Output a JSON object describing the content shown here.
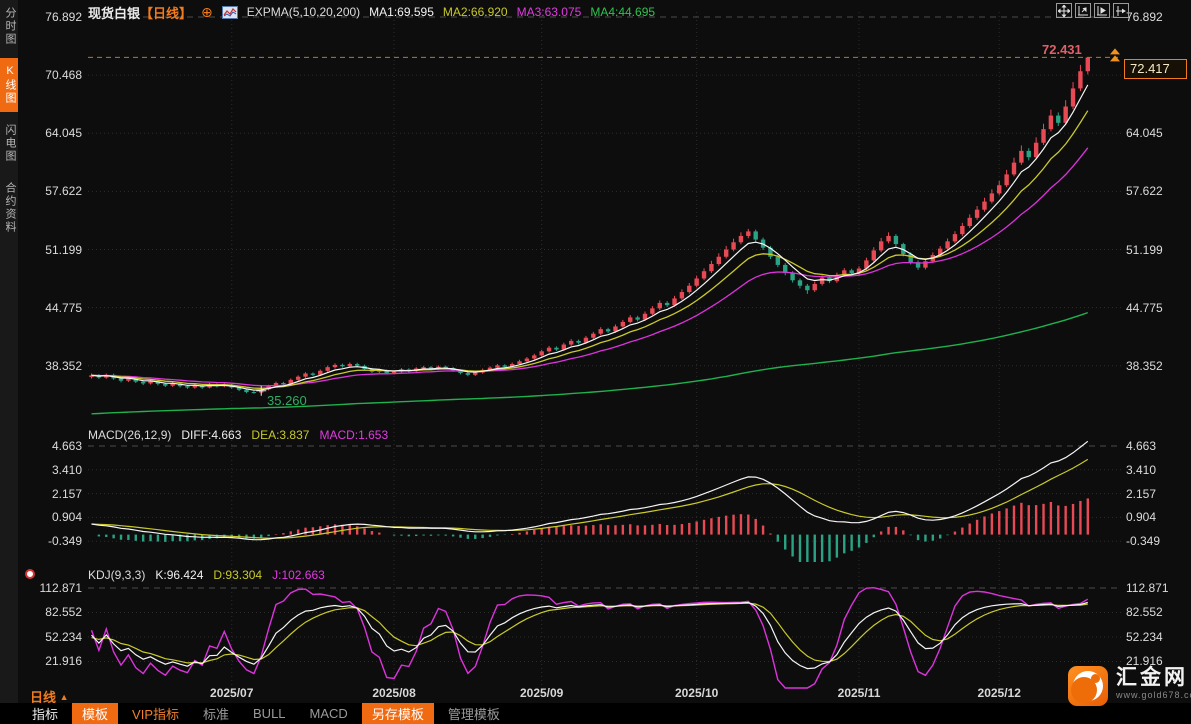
{
  "sidebar": {
    "tabs": [
      {
        "label": "分时图",
        "active": false
      },
      {
        "label": "K线图",
        "active": true
      },
      {
        "label": "闪电图",
        "active": false
      },
      {
        "label": "合约资料",
        "active": false
      }
    ]
  },
  "header": {
    "symbol": "现货白银",
    "period": "【日线】",
    "add_icon": "⊕",
    "indicator_label": "EXPMA(5,10,20,200)",
    "ma1": "MA1:69.595",
    "ma2": "MA2:66.920",
    "ma3": "MA3:63.075",
    "ma4": "MA4:44.695"
  },
  "toolbar_icons": [
    "pan-mode-icon",
    "compress-time-icon",
    "play-forward-icon",
    "jump-latest-icon"
  ],
  "main_chart": {
    "annotations": {
      "high": "72.431",
      "low": "35.260",
      "last_price": "72.417"
    }
  },
  "macd_panel": {
    "title": "MACD(26,12,9)",
    "diff": "DIFF:4.663",
    "dea": "DEA:3.837",
    "macd": "MACD:1.653"
  },
  "kdj_panel": {
    "title": "KDJ(9,3,3)",
    "k": "K:96.424",
    "d": "D:93.304",
    "j": "J:102.663"
  },
  "period_label": {
    "text": "日线",
    "arrow": "▲"
  },
  "bottom_toolbar": {
    "items": [
      {
        "label": "指标",
        "style": "bright"
      },
      {
        "label": "模板",
        "style": "active"
      },
      {
        "label": "VIP指标",
        "style": "vip"
      },
      {
        "label": "标准",
        "style": "plain"
      },
      {
        "label": "BULL",
        "style": "plain"
      },
      {
        "label": "MACD",
        "style": "plain"
      },
      {
        "label": "另存模板",
        "style": "active"
      },
      {
        "label": "管理模板",
        "style": "plain"
      }
    ]
  },
  "logo": {
    "name": "汇金网",
    "url": "www.gold678.com"
  },
  "colors": {
    "up_candle": "#e84a55",
    "down_candle": "#2aa385",
    "ma1": "#f5f5f5",
    "ma2": "#c9c92b",
    "ma3": "#dd33dd",
    "ma4": "#1fb14e",
    "accent_orange": "#f06a12",
    "high_line": "#c8731c",
    "grid": "#2c2c2c",
    "grid_dashed": "#4a4a4a",
    "axis_text": "#dcdcdc",
    "high_label": "#e06069",
    "low_label": "#2fae63"
  },
  "chart_data": {
    "type": "candlestick",
    "title": "现货白银 日线 (Spot Silver, daily)",
    "y_axis_main": [
      76.892,
      70.468,
      64.045,
      57.622,
      51.199,
      44.775,
      38.352
    ],
    "y_axis_macd": [
      4.663,
      3.41,
      2.157,
      0.904,
      -0.349
    ],
    "y_axis_kdj": [
      112.871,
      82.552,
      52.234,
      21.916
    ],
    "x_month_ticks": [
      {
        "label": "2025/07",
        "index": 19
      },
      {
        "label": "2025/08",
        "index": 41
      },
      {
        "label": "2025/09",
        "index": 61
      },
      {
        "label": "2025/10",
        "index": 82
      },
      {
        "label": "2025/11",
        "index": 104
      },
      {
        "label": "2025/12",
        "index": 123
      }
    ],
    "high_line_value": 72.431,
    "last_price": 72.417,
    "marked_low": {
      "index": 22,
      "value": 35.26
    },
    "indicators": {
      "expma_periods": [
        5,
        10,
        20,
        200
      ],
      "macd_params": [
        26,
        12,
        9
      ],
      "kdj_params": [
        9,
        3,
        3
      ]
    },
    "candles": [
      [
        37.1,
        37.5,
        36.95,
        37.3
      ],
      [
        37.3,
        37.45,
        36.9,
        37.05
      ],
      [
        37.05,
        37.5,
        36.92,
        37.35
      ],
      [
        37.35,
        37.48,
        36.8,
        36.95
      ],
      [
        36.95,
        37.08,
        36.52,
        36.7
      ],
      [
        36.7,
        37.12,
        36.55,
        36.95
      ],
      [
        36.95,
        37.05,
        36.45,
        36.6
      ],
      [
        36.6,
        36.75,
        36.22,
        36.4
      ],
      [
        36.4,
        36.82,
        36.28,
        36.65
      ],
      [
        36.65,
        36.78,
        36.18,
        36.35
      ],
      [
        36.35,
        36.5,
        36.0,
        36.15
      ],
      [
        36.15,
        36.55,
        36.02,
        36.4
      ],
      [
        36.4,
        36.52,
        35.95,
        36.1
      ],
      [
        36.1,
        36.25,
        35.8,
        35.95
      ],
      [
        35.95,
        36.35,
        35.82,
        36.2
      ],
      [
        36.2,
        36.3,
        35.8,
        35.95
      ],
      [
        35.95,
        36.45,
        35.85,
        36.3
      ],
      [
        36.3,
        36.42,
        35.95,
        36.1
      ],
      [
        36.1,
        36.4,
        35.98,
        36.25
      ],
      [
        36.25,
        36.35,
        35.8,
        35.95
      ],
      [
        35.95,
        36.05,
        35.55,
        35.7
      ],
      [
        35.7,
        35.82,
        35.32,
        35.45
      ],
      [
        35.45,
        35.58,
        35.26,
        35.4
      ],
      [
        35.4,
        35.9,
        35.3,
        35.75
      ],
      [
        35.75,
        36.25,
        35.62,
        36.1
      ],
      [
        36.1,
        36.6,
        36.0,
        36.45
      ],
      [
        36.45,
        36.58,
        36.15,
        36.3
      ],
      [
        36.3,
        36.95,
        36.2,
        36.8
      ],
      [
        36.8,
        37.3,
        36.68,
        37.15
      ],
      [
        37.15,
        37.65,
        37.02,
        37.5
      ],
      [
        37.5,
        37.62,
        37.2,
        37.35
      ],
      [
        37.35,
        37.95,
        37.22,
        37.8
      ],
      [
        37.8,
        38.38,
        37.68,
        38.2
      ],
      [
        38.2,
        38.62,
        38.05,
        38.45
      ],
      [
        38.45,
        38.6,
        38.15,
        38.3
      ],
      [
        38.3,
        38.72,
        38.18,
        38.55
      ],
      [
        38.55,
        38.7,
        38.2,
        38.35
      ],
      [
        38.35,
        38.48,
        37.85,
        38.0
      ],
      [
        38.0,
        38.12,
        37.55,
        37.7
      ],
      [
        37.7,
        38.0,
        37.55,
        37.85
      ],
      [
        37.85,
        37.95,
        37.4,
        37.55
      ],
      [
        37.55,
        37.85,
        37.4,
        37.7
      ],
      [
        37.7,
        38.1,
        37.58,
        37.95
      ],
      [
        37.95,
        38.08,
        37.6,
        37.75
      ],
      [
        37.75,
        38.2,
        37.62,
        38.05
      ],
      [
        38.05,
        38.35,
        37.92,
        38.2
      ],
      [
        38.2,
        38.32,
        37.85,
        38.0
      ],
      [
        38.0,
        38.4,
        37.88,
        38.25
      ],
      [
        38.25,
        38.38,
        37.95,
        38.1
      ],
      [
        38.1,
        38.22,
        37.7,
        37.85
      ],
      [
        37.85,
        37.95,
        37.4,
        37.55
      ],
      [
        37.55,
        37.68,
        37.2,
        37.35
      ],
      [
        37.35,
        37.75,
        37.22,
        37.6
      ],
      [
        37.6,
        38.05,
        37.48,
        37.9
      ],
      [
        37.9,
        38.3,
        37.78,
        38.15
      ],
      [
        38.15,
        38.55,
        38.02,
        38.4
      ],
      [
        38.4,
        38.52,
        38.1,
        38.25
      ],
      [
        38.25,
        38.72,
        38.12,
        38.55
      ],
      [
        38.55,
        39.02,
        38.42,
        38.85
      ],
      [
        38.85,
        39.32,
        38.72,
        39.15
      ],
      [
        39.15,
        39.68,
        39.02,
        39.5
      ],
      [
        39.5,
        40.12,
        39.38,
        39.95
      ],
      [
        39.95,
        40.55,
        39.82,
        40.35
      ],
      [
        40.35,
        40.5,
        40.0,
        40.15
      ],
      [
        40.15,
        40.9,
        40.02,
        40.7
      ],
      [
        40.7,
        41.3,
        40.55,
        41.1
      ],
      [
        41.1,
        41.25,
        40.72,
        40.9
      ],
      [
        40.9,
        41.65,
        40.78,
        41.45
      ],
      [
        41.45,
        42.1,
        41.3,
        41.9
      ],
      [
        41.9,
        42.62,
        41.75,
        42.4
      ],
      [
        42.4,
        42.55,
        41.98,
        42.15
      ],
      [
        42.15,
        42.92,
        42.0,
        42.7
      ],
      [
        42.7,
        43.42,
        42.55,
        43.2
      ],
      [
        43.2,
        43.95,
        43.05,
        43.7
      ],
      [
        43.7,
        43.88,
        43.25,
        43.45
      ],
      [
        43.45,
        44.35,
        43.3,
        44.1
      ],
      [
        44.1,
        44.95,
        43.95,
        44.7
      ],
      [
        44.7,
        45.58,
        44.52,
        45.3
      ],
      [
        45.3,
        45.5,
        44.85,
        45.05
      ],
      [
        45.05,
        46.08,
        44.88,
        45.8
      ],
      [
        45.8,
        46.8,
        45.62,
        46.5
      ],
      [
        46.5,
        47.5,
        46.32,
        47.2
      ],
      [
        47.2,
        48.32,
        47.02,
        48.0
      ],
      [
        48.0,
        49.12,
        47.8,
        48.8
      ],
      [
        48.8,
        49.95,
        48.6,
        49.6
      ],
      [
        49.6,
        50.78,
        49.4,
        50.4
      ],
      [
        50.4,
        51.6,
        50.2,
        51.2
      ],
      [
        51.2,
        52.4,
        51.0,
        52.0
      ],
      [
        52.0,
        53.1,
        51.78,
        52.7
      ],
      [
        52.7,
        53.48,
        52.45,
        53.2
      ],
      [
        53.2,
        53.4,
        52.05,
        52.3
      ],
      [
        52.3,
        52.52,
        51.15,
        51.4
      ],
      [
        51.4,
        51.6,
        50.15,
        50.4
      ],
      [
        50.4,
        50.6,
        49.25,
        49.5
      ],
      [
        49.5,
        49.7,
        48.35,
        48.6
      ],
      [
        48.6,
        48.8,
        47.55,
        47.8
      ],
      [
        47.8,
        48.0,
        46.9,
        47.2
      ],
      [
        47.2,
        47.4,
        46.3,
        46.7
      ],
      [
        46.7,
        47.65,
        46.5,
        47.4
      ],
      [
        47.4,
        48.35,
        47.2,
        48.1
      ],
      [
        48.1,
        48.28,
        47.48,
        47.7
      ],
      [
        47.7,
        48.65,
        47.52,
        48.4
      ],
      [
        48.4,
        49.15,
        48.2,
        48.9
      ],
      [
        48.9,
        49.08,
        48.38,
        48.6
      ],
      [
        48.6,
        49.35,
        48.4,
        49.1
      ],
      [
        49.1,
        50.3,
        48.9,
        50.0
      ],
      [
        50.0,
        51.45,
        49.82,
        51.1
      ],
      [
        51.1,
        52.48,
        50.9,
        52.1
      ],
      [
        52.1,
        53.1,
        51.88,
        52.7
      ],
      [
        52.7,
        52.9,
        51.55,
        51.8
      ],
      [
        51.8,
        51.95,
        50.45,
        50.7
      ],
      [
        50.7,
        50.88,
        49.55,
        49.8
      ],
      [
        49.8,
        50.0,
        48.95,
        49.2
      ],
      [
        49.2,
        50.15,
        49.0,
        49.9
      ],
      [
        49.9,
        50.88,
        49.7,
        50.6
      ],
      [
        50.6,
        51.58,
        50.4,
        51.3
      ],
      [
        51.3,
        52.42,
        51.1,
        52.1
      ],
      [
        52.1,
        53.22,
        51.9,
        52.9
      ],
      [
        52.9,
        54.15,
        52.68,
        53.8
      ],
      [
        53.8,
        55.08,
        53.58,
        54.7
      ],
      [
        54.7,
        56.0,
        54.48,
        55.6
      ],
      [
        55.6,
        56.92,
        55.38,
        56.5
      ],
      [
        56.5,
        57.85,
        56.28,
        57.4
      ],
      [
        57.4,
        58.78,
        57.18,
        58.3
      ],
      [
        58.3,
        60.0,
        58.1,
        59.5
      ],
      [
        59.5,
        61.35,
        59.28,
        60.8
      ],
      [
        60.8,
        62.7,
        60.55,
        62.1
      ],
      [
        62.1,
        62.4,
        61.05,
        61.4
      ],
      [
        61.4,
        63.6,
        61.15,
        63.0
      ],
      [
        63.0,
        65.1,
        62.75,
        64.5
      ],
      [
        64.5,
        66.65,
        64.25,
        66.0
      ],
      [
        66.0,
        66.35,
        64.85,
        65.2
      ],
      [
        65.2,
        67.7,
        64.95,
        67.0
      ],
      [
        67.0,
        69.7,
        66.7,
        69.0
      ],
      [
        69.0,
        71.6,
        68.7,
        70.9
      ],
      [
        70.9,
        72.431,
        70.55,
        72.417
      ]
    ]
  }
}
